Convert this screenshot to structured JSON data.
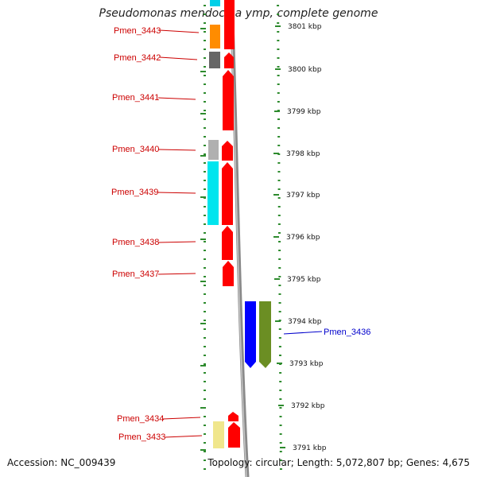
{
  "title": "Pseudomonas mendocina ymp, complete genome",
  "footer": {
    "accession": "Accession: NC_009439",
    "summary": "Topology: circular; Length: 5,072,807 bp; Genes: 4,675"
  },
  "colors": {
    "axis_dots": "#2e8b2e",
    "axis_line": "#8a8a8a",
    "gene_red": "#ff0000",
    "label_red": "#cc0000",
    "label_blue": "#0000cc"
  },
  "kbp_ticks": [
    {
      "label": "3801 kbp"
    },
    {
      "label": "3800 kbp"
    },
    {
      "label": "3799 kbp"
    },
    {
      "label": "3798 kbp"
    },
    {
      "label": "3797 kbp"
    },
    {
      "label": "3796 kbp"
    },
    {
      "label": "3795 kbp"
    },
    {
      "label": "3794 kbp"
    },
    {
      "label": "3793 kbp"
    },
    {
      "label": "3792 kbp"
    },
    {
      "label": "3791 kbp"
    }
  ],
  "gene_labels": [
    {
      "text": "Pmen_3443",
      "color": "#cc0000"
    },
    {
      "text": "Pmen_3442",
      "color": "#cc0000"
    },
    {
      "text": "Pmen_3441",
      "color": "#cc0000"
    },
    {
      "text": "Pmen_3440",
      "color": "#cc0000"
    },
    {
      "text": "Pmen_3439",
      "color": "#cc0000"
    },
    {
      "text": "Pmen_3438",
      "color": "#cc0000"
    },
    {
      "text": "Pmen_3437",
      "color": "#cc0000"
    },
    {
      "text": "Pmen_3436",
      "color": "#0000cc"
    },
    {
      "text": "Pmen_3434",
      "color": "#cc0000"
    },
    {
      "text": "Pmen_3433",
      "color": "#cc0000"
    }
  ],
  "cog_colors": [
    "#00cfe8",
    "#ff8c00",
    "#666666",
    "#b0b0b0",
    "#00e5ee",
    "#0000ff",
    "#6b8e23",
    "#f0e68c"
  ]
}
